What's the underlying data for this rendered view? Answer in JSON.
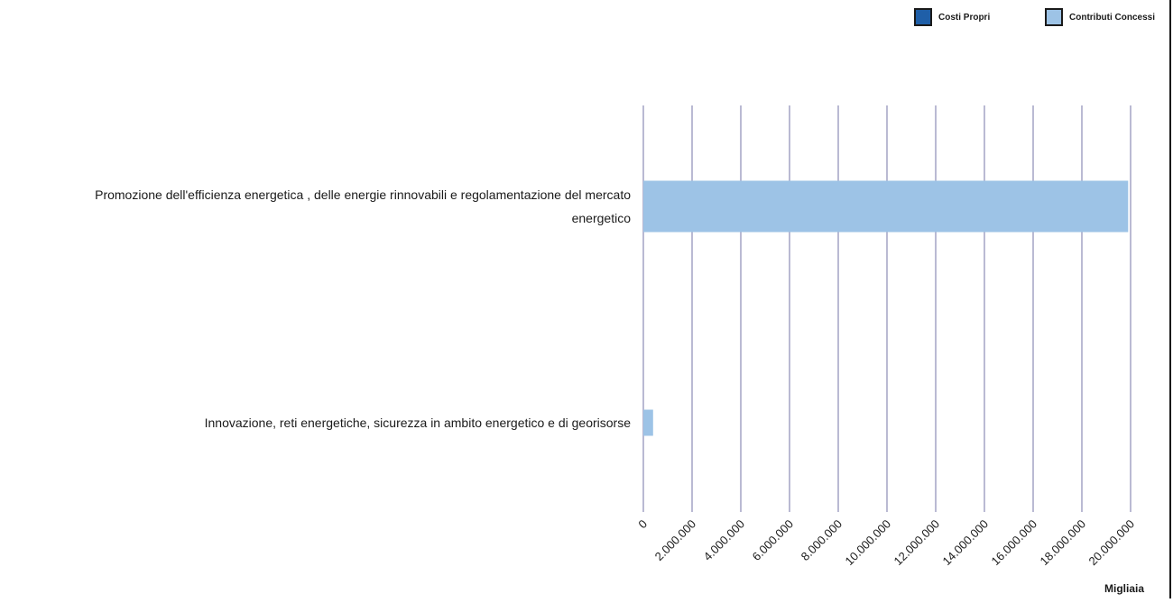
{
  "chart_data": {
    "type": "bar",
    "orientation": "horizontal",
    "categories": [
      [
        "Promozione dell'efficienza energetica , delle energie rinnovabili e regolamentazione del mercato",
        "energetico"
      ],
      [
        "Innovazione, reti energetiche, sicurezza in ambito energetico e di georisorse"
      ]
    ],
    "series": [
      {
        "name": "Costi Propri",
        "color": "#1f5fa8",
        "values": [
          0,
          0
        ]
      },
      {
        "name": "Contributi Concessi",
        "color": "#9dc3e6",
        "values": [
          19900000,
          400000
        ]
      }
    ],
    "xlim": [
      0,
      20000000
    ],
    "xticks": [
      0,
      2000000,
      4000000,
      6000000,
      8000000,
      10000000,
      12000000,
      14000000,
      16000000,
      18000000,
      20000000
    ],
    "xtick_labels": [
      "0",
      "2.000.000",
      "4.000.000",
      "6.000.000",
      "8.000.000",
      "10.000.000",
      "12.000.000",
      "14.000.000",
      "16.000.000",
      "18.000.000",
      "20.000.000"
    ],
    "xunit": "Migliaia",
    "grid": "vertical",
    "grid_color": "#a8a8c8",
    "legend_position": "top-right"
  }
}
